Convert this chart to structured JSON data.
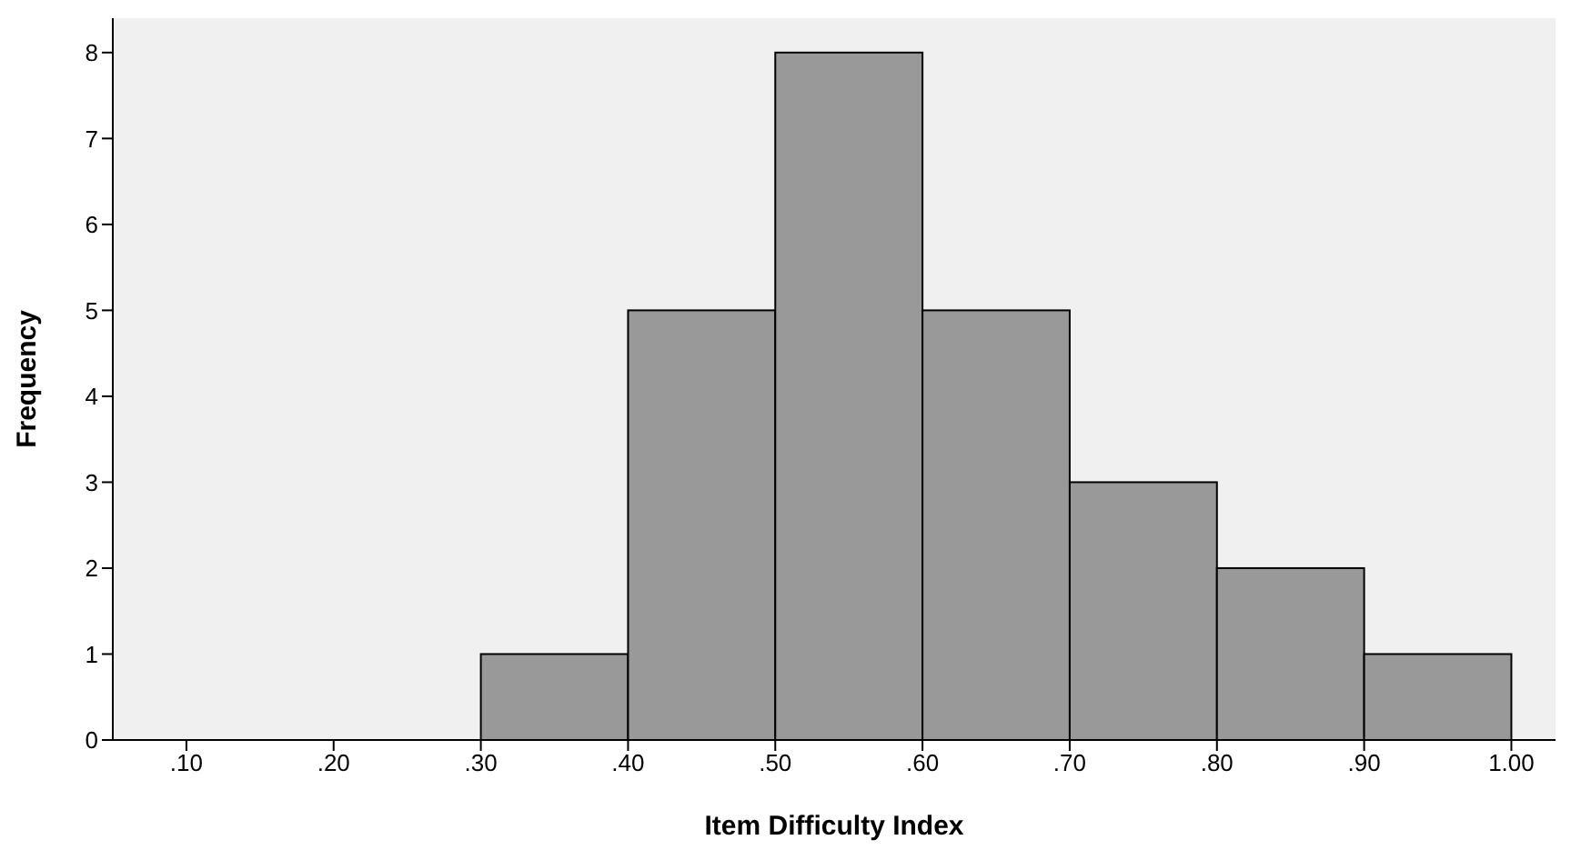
{
  "chart_data": {
    "type": "histogram",
    "xlabel": "Item Difficulty Index",
    "ylabel": "Frequency",
    "bins": [
      0.3,
      0.4,
      0.5,
      0.6,
      0.7,
      0.8,
      0.9,
      1.0
    ],
    "values": [
      1,
      5,
      8,
      5,
      3,
      2,
      1
    ],
    "color": "#999999",
    "xlim": [
      0.05,
      1.03
    ],
    "xticks": [
      {
        "value": 0.1,
        "label": ".10"
      },
      {
        "value": 0.2,
        "label": ".20"
      },
      {
        "value": 0.3,
        "label": ".30"
      },
      {
        "value": 0.4,
        "label": ".40"
      },
      {
        "value": 0.5,
        "label": ".50"
      },
      {
        "value": 0.6,
        "label": ".60"
      },
      {
        "value": 0.7,
        "label": ".70"
      },
      {
        "value": 0.8,
        "label": ".80"
      },
      {
        "value": 0.9,
        "label": ".90"
      },
      {
        "value": 1.0,
        "label": "1.00"
      }
    ],
    "ylim": [
      0,
      8.4
    ],
    "yticks": [
      0,
      1,
      2,
      3,
      4,
      5,
      6,
      7,
      8
    ]
  }
}
